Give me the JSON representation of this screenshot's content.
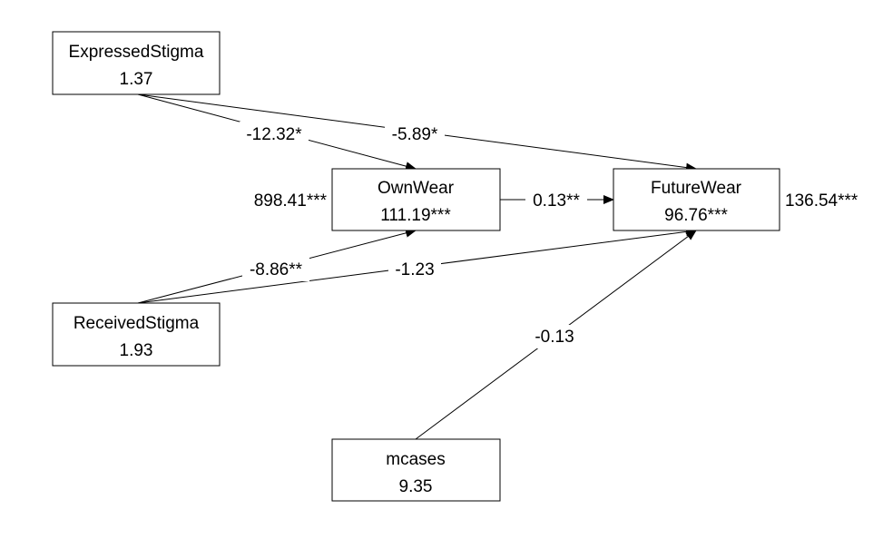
{
  "nodes": {
    "expressed_stigma": {
      "name": "ExpressedStigma",
      "value": "1.37"
    },
    "own_wear": {
      "name": "OwnWear",
      "value": "111.19***"
    },
    "future_wear": {
      "name": "FutureWear",
      "value": "96.76***"
    },
    "received_stigma": {
      "name": "ReceivedStigma",
      "value": "1.93"
    },
    "mcases": {
      "name": "mcases",
      "value": "9.35"
    }
  },
  "residuals": {
    "own_wear": "898.41***",
    "future_wear": "136.54***"
  },
  "edges": {
    "expressed_to_own": "-12.32*",
    "expressed_to_future": "-5.89*",
    "own_to_future": "0.13**",
    "received_to_own": "-8.86**",
    "received_to_future": "-1.23",
    "mcases_to_future": "-0.13"
  }
}
